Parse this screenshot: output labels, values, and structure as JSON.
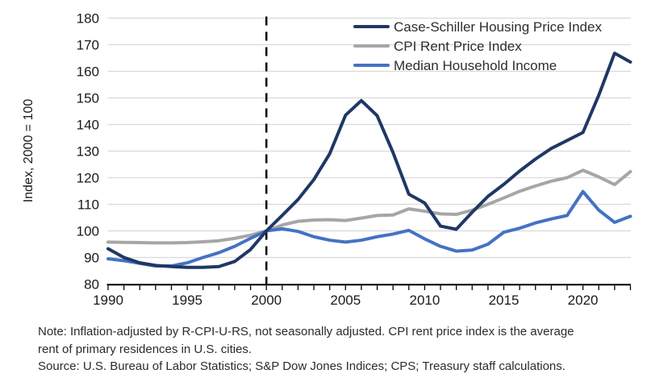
{
  "chart_data": {
    "type": "line",
    "title": "",
    "xlabel": "",
    "ylabel": "Index, 2000 = 100",
    "ylim": [
      80,
      180
    ],
    "ytick_step": 10,
    "xlim": [
      1990,
      2023
    ],
    "xticks_labeled": [
      1990,
      1995,
      2000,
      2005,
      2010,
      2015,
      2020
    ],
    "grid": "horizontal",
    "gridline_color": "#d9d9d9",
    "axis_color": "#000000",
    "tick_label_color": "#1a1a1a",
    "legend_position": "top-right-inside",
    "reference_line": {
      "x": 2000,
      "style": "dashed",
      "color": "#000000"
    },
    "x": [
      1990,
      1991,
      1992,
      1993,
      1994,
      1995,
      1996,
      1997,
      1998,
      1999,
      2000,
      2001,
      2002,
      2003,
      2004,
      2005,
      2006,
      2007,
      2008,
      2009,
      2010,
      2011,
      2012,
      2013,
      2014,
      2015,
      2016,
      2017,
      2018,
      2019,
      2020,
      2021,
      2022,
      2023
    ],
    "series": [
      {
        "name": "Case-Schiller Housing Price Index",
        "color": "#1f3864",
        "values": [
          93.3,
          90.0,
          88.0,
          87.0,
          86.6,
          86.3,
          86.3,
          86.6,
          88.5,
          93.0,
          100.0,
          105.8,
          111.8,
          119.3,
          129.0,
          143.5,
          149.0,
          143.3,
          129.5,
          113.8,
          110.5,
          101.8,
          100.6,
          107.0,
          113.0,
          117.5,
          122.5,
          127.0,
          131.0,
          134.0,
          137.0,
          151.0,
          166.8,
          163.5
        ]
      },
      {
        "name": "CPI Rent Price Index",
        "color": "#a6a6a6",
        "values": [
          95.8,
          95.7,
          95.6,
          95.5,
          95.5,
          95.6,
          95.9,
          96.3,
          97.2,
          98.4,
          100.0,
          102.2,
          103.6,
          104.1,
          104.2,
          103.9,
          104.8,
          105.8,
          106.0,
          108.3,
          107.4,
          106.4,
          106.2,
          107.8,
          110.0,
          112.4,
          114.9,
          116.9,
          118.7,
          120.0,
          122.8,
          120.3,
          117.4,
          122.3
        ]
      },
      {
        "name": "Median Household Income",
        "color": "#4472c4",
        "values": [
          89.5,
          88.8,
          87.8,
          86.8,
          86.8,
          88.0,
          90.0,
          91.8,
          94.2,
          97.2,
          100.0,
          100.8,
          99.8,
          97.8,
          96.5,
          95.8,
          96.5,
          97.8,
          98.8,
          100.2,
          97.0,
          94.2,
          92.4,
          92.8,
          95.0,
          99.5,
          101.0,
          103.0,
          104.5,
          105.8,
          114.8,
          107.8,
          103.2,
          105.5
        ]
      }
    ]
  },
  "notes": {
    "line1": "Note: Inflation-adjusted by R-CPI-U-RS, not seasonally adjusted. CPI rent price index is the average",
    "line2": "rent of primary residences in U.S. cities.",
    "line3": "Source: U.S. Bureau of Labor Statistics; S&P Dow Jones Indices; CPS; Treasury staff calculations."
  }
}
